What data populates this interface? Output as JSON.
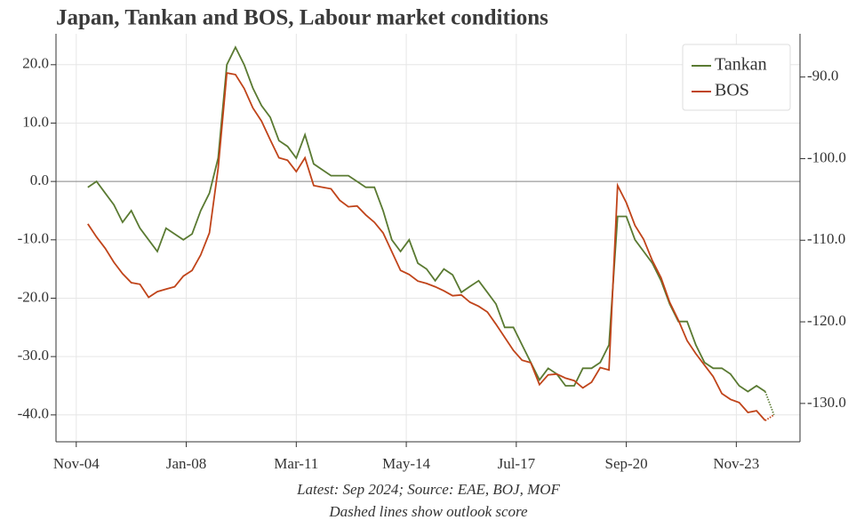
{
  "chart_data": {
    "type": "line",
    "title": "Japan, Tankan and BOS, Labour market conditions",
    "notes": [
      "Latest: Sep 2024; Source: EAE, BOJ, MOF",
      "Dashed lines show outlook score"
    ],
    "x": [
      "2005-03",
      "2005-06",
      "2005-09",
      "2005-12",
      "2006-03",
      "2006-06",
      "2006-09",
      "2006-12",
      "2007-03",
      "2007-06",
      "2007-09",
      "2007-12",
      "2008-03",
      "2008-06",
      "2008-09",
      "2008-12",
      "2009-03",
      "2009-06",
      "2009-09",
      "2009-12",
      "2010-03",
      "2010-06",
      "2010-09",
      "2010-12",
      "2011-03",
      "2011-06",
      "2011-09",
      "2011-12",
      "2012-03",
      "2012-06",
      "2012-09",
      "2012-12",
      "2013-03",
      "2013-06",
      "2013-09",
      "2013-12",
      "2014-03",
      "2014-06",
      "2014-09",
      "2014-12",
      "2015-03",
      "2015-06",
      "2015-09",
      "2015-12",
      "2016-03",
      "2016-06",
      "2016-09",
      "2016-12",
      "2017-03",
      "2017-06",
      "2017-09",
      "2017-12",
      "2018-03",
      "2018-06",
      "2018-09",
      "2018-12",
      "2019-03",
      "2019-06",
      "2019-09",
      "2019-12",
      "2020-03",
      "2020-06",
      "2020-09",
      "2020-12",
      "2021-03",
      "2021-06",
      "2021-09",
      "2021-12",
      "2022-03",
      "2022-06",
      "2022-09",
      "2022-12",
      "2023-03",
      "2023-06",
      "2023-09",
      "2023-12",
      "2024-03",
      "2024-06",
      "2024-09",
      "2024-12"
    ],
    "xlim": [
      "2004-04",
      "2025-09"
    ],
    "xticks": [
      {
        "value": "2004-11",
        "label": "Nov-04"
      },
      {
        "value": "2008-01",
        "label": "Jan-08"
      },
      {
        "value": "2011-03",
        "label": "Mar-11"
      },
      {
        "value": "2014-05",
        "label": "May-14"
      },
      {
        "value": "2017-07",
        "label": "Jul-17"
      },
      {
        "value": "2020-09",
        "label": "Sep-20"
      },
      {
        "value": "2023-11",
        "label": "Nov-23"
      }
    ],
    "ylim": [
      -44.6,
      25.3
    ],
    "yticks": [
      {
        "value": -40,
        "label": "-40.0"
      },
      {
        "value": -30,
        "label": "-30.0"
      },
      {
        "value": -20,
        "label": "-20.0"
      },
      {
        "value": -10,
        "label": "-10.0"
      },
      {
        "value": 0,
        "label": "0.0"
      },
      {
        "value": 10,
        "label": "10.0"
      },
      {
        "value": 20,
        "label": "20.0"
      }
    ],
    "y2lim": [
      -134.7,
      -84.7
    ],
    "y2ticks": [
      {
        "value": -130,
        "label": "-130.0"
      },
      {
        "value": -120,
        "label": "-120.0"
      },
      {
        "value": -110,
        "label": "-110.0"
      },
      {
        "value": -100,
        "label": "-100.0"
      },
      {
        "value": -90,
        "label": "-90.0"
      }
    ],
    "hline": 0,
    "grid": true,
    "legend": "upper right",
    "series": [
      {
        "name": "Tankan",
        "color": "#5a7a32",
        "axis": "y",
        "values": [
          -1,
          0,
          -2,
          -4,
          -7,
          -5,
          -8,
          -10,
          -12,
          -8,
          -9,
          -10,
          -9,
          -5,
          -2,
          4,
          20,
          23,
          20,
          16,
          13,
          11,
          7,
          6,
          4,
          8,
          3,
          2,
          1,
          1,
          1,
          0,
          -1,
          -1,
          -5,
          -10,
          -12,
          -10,
          -14,
          -15,
          -17,
          -15,
          -16,
          -19,
          -18,
          -17,
          -19,
          -21,
          -25,
          -25,
          -28,
          -31,
          -34,
          -32,
          -33,
          -35,
          -35,
          -32,
          -32,
          -31,
          -28,
          -6,
          -6,
          -10,
          -12,
          -14,
          -17,
          -21,
          -24,
          -24,
          -28,
          -31,
          -32,
          -32,
          -33,
          -35,
          -36,
          -35,
          -36,
          null
        ],
        "outlook": [
          null,
          null,
          null,
          null,
          null,
          null,
          null,
          null,
          null,
          null,
          null,
          null,
          null,
          null,
          null,
          null,
          null,
          null,
          null,
          null,
          null,
          null,
          null,
          null,
          null,
          null,
          null,
          null,
          null,
          null,
          null,
          null,
          null,
          null,
          null,
          null,
          null,
          null,
          null,
          null,
          null,
          null,
          null,
          null,
          null,
          null,
          null,
          null,
          null,
          null,
          null,
          null,
          null,
          null,
          null,
          null,
          null,
          null,
          null,
          null,
          null,
          null,
          null,
          null,
          null,
          null,
          null,
          null,
          null,
          null,
          null,
          null,
          null,
          null,
          null,
          null,
          null,
          null,
          null,
          -40
        ]
      },
      {
        "name": "BOS",
        "color": "#c0441a",
        "axis": "y2",
        "values": [
          -108.0,
          -109.6,
          -111.0,
          -112.7,
          -114.1,
          -115.2,
          -115.4,
          -117.0,
          -116.3,
          -116.0,
          -115.7,
          -114.4,
          -113.7,
          -111.8,
          -109.1,
          -101.2,
          -89.5,
          -89.7,
          -91.4,
          -93.8,
          -95.4,
          -97.7,
          -99.9,
          -100.2,
          -101.6,
          -99.9,
          -103.3,
          -103.5,
          -103.7,
          -105.1,
          -105.9,
          -105.8,
          -106.9,
          -107.8,
          -109.1,
          -111.4,
          -113.7,
          -114.2,
          -115.0,
          -115.3,
          -115.7,
          -116.2,
          -116.8,
          -116.7,
          -117.6,
          -118.1,
          -118.8,
          -120.3,
          -121.9,
          -123.5,
          -124.7,
          -125.0,
          -127.7,
          -126.5,
          -126.4,
          -126.9,
          -127.2,
          -128.1,
          -127.4,
          -125.6,
          -125.9,
          -103.3,
          -105.4,
          -108.2,
          -109.9,
          -112.5,
          -114.6,
          -117.6,
          -119.8,
          -122.3,
          -123.9,
          -125.3,
          -126.7,
          -128.8,
          -129.5,
          -129.9,
          -131.1,
          -130.9,
          -132.1,
          null
        ],
        "outlook": [
          null,
          null,
          null,
          null,
          null,
          null,
          null,
          null,
          null,
          null,
          null,
          null,
          null,
          null,
          null,
          null,
          null,
          null,
          null,
          null,
          null,
          null,
          null,
          null,
          null,
          null,
          null,
          null,
          null,
          null,
          null,
          null,
          null,
          null,
          null,
          null,
          null,
          null,
          null,
          null,
          null,
          null,
          null,
          null,
          null,
          null,
          null,
          null,
          null,
          null,
          null,
          null,
          null,
          null,
          null,
          null,
          null,
          null,
          null,
          null,
          null,
          null,
          null,
          null,
          null,
          null,
          null,
          null,
          null,
          null,
          null,
          null,
          null,
          null,
          null,
          null,
          null,
          null,
          null,
          -131.4
        ]
      }
    ]
  }
}
